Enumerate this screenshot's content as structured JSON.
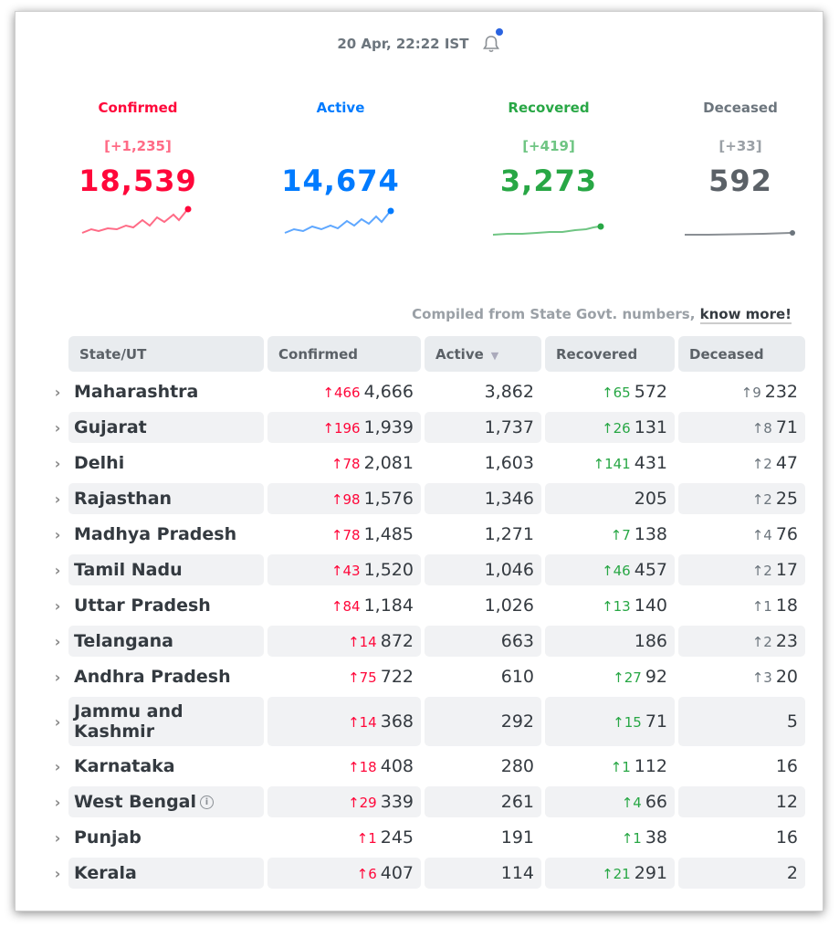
{
  "header": {
    "timestamp": "20 Apr, 22:22 IST"
  },
  "levels": {
    "confirmed": {
      "label": "Confirmed",
      "delta": "[+1,235]",
      "total": "18,539",
      "color": "#ff073a"
    },
    "active": {
      "label": "Active",
      "delta": "",
      "total": "14,674",
      "color": "#007bff"
    },
    "recovered": {
      "label": "Recovered",
      "delta": "[+419]",
      "total": "3,273",
      "color": "#28a745"
    },
    "deceased": {
      "label": "Deceased",
      "delta": "[+33]",
      "total": "592",
      "color": "#6c757d"
    }
  },
  "note": {
    "text": "Compiled from State Govt. numbers, ",
    "link": "know more!"
  },
  "table": {
    "headers": {
      "state": "State/UT",
      "confirmed": "Confirmed",
      "active": "Active",
      "recovered": "Recovered",
      "deceased": "Deceased"
    },
    "rows": [
      {
        "state": "Maharashtra",
        "dc": "466",
        "confirmed": "4,666",
        "active": "3,862",
        "dr": "65",
        "recovered": "572",
        "dd": "9",
        "deceased": "232"
      },
      {
        "state": "Gujarat",
        "dc": "196",
        "confirmed": "1,939",
        "active": "1,737",
        "dr": "26",
        "recovered": "131",
        "dd": "8",
        "deceased": "71"
      },
      {
        "state": "Delhi",
        "dc": "78",
        "confirmed": "2,081",
        "active": "1,603",
        "dr": "141",
        "recovered": "431",
        "dd": "2",
        "deceased": "47"
      },
      {
        "state": "Rajasthan",
        "dc": "98",
        "confirmed": "1,576",
        "active": "1,346",
        "dr": "",
        "recovered": "205",
        "dd": "2",
        "deceased": "25"
      },
      {
        "state": "Madhya Pradesh",
        "dc": "78",
        "confirmed": "1,485",
        "active": "1,271",
        "dr": "7",
        "recovered": "138",
        "dd": "4",
        "deceased": "76"
      },
      {
        "state": "Tamil Nadu",
        "dc": "43",
        "confirmed": "1,520",
        "active": "1,046",
        "dr": "46",
        "recovered": "457",
        "dd": "2",
        "deceased": "17"
      },
      {
        "state": "Uttar Pradesh",
        "dc": "84",
        "confirmed": "1,184",
        "active": "1,026",
        "dr": "13",
        "recovered": "140",
        "dd": "1",
        "deceased": "18"
      },
      {
        "state": "Telangana",
        "dc": "14",
        "confirmed": "872",
        "active": "663",
        "dr": "",
        "recovered": "186",
        "dd": "2",
        "deceased": "23"
      },
      {
        "state": "Andhra Pradesh",
        "dc": "75",
        "confirmed": "722",
        "active": "610",
        "dr": "27",
        "recovered": "92",
        "dd": "3",
        "deceased": "20"
      },
      {
        "state": "Jammu and Kashmir",
        "dc": "14",
        "confirmed": "368",
        "active": "292",
        "dr": "15",
        "recovered": "71",
        "dd": "",
        "deceased": "5"
      },
      {
        "state": "Karnataka",
        "dc": "18",
        "confirmed": "408",
        "active": "280",
        "dr": "1",
        "recovered": "112",
        "dd": "",
        "deceased": "16"
      },
      {
        "state": "West Bengal",
        "dc": "29",
        "confirmed": "339",
        "active": "261",
        "dr": "4",
        "recovered": "66",
        "dd": "",
        "deceased": "12"
      },
      {
        "state": "Punjab",
        "dc": "1",
        "confirmed": "245",
        "active": "191",
        "dr": "1",
        "recovered": "38",
        "dd": "",
        "deceased": "16"
      },
      {
        "state": "Kerala",
        "dc": "6",
        "confirmed": "407",
        "active": "114",
        "dr": "21",
        "recovered": "291",
        "dd": "",
        "deceased": "2"
      }
    ]
  }
}
